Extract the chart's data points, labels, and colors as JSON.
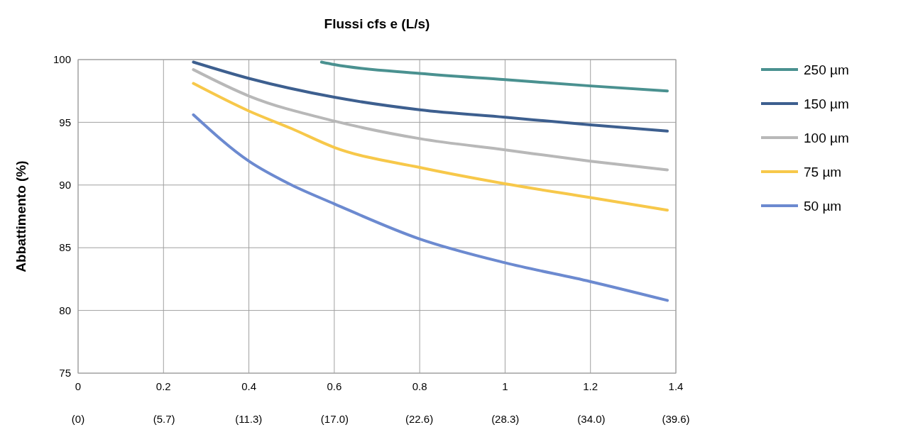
{
  "chart_data": {
    "type": "line",
    "title": "Flussi cfs e (L/s)",
    "ylabel": "Abbattimento (%)",
    "xlim": [
      0,
      1.4
    ],
    "xticks": [
      0,
      0.2,
      0.4,
      0.6,
      0.8,
      1,
      1.2,
      1.4
    ],
    "x2lim": [
      0,
      39.6
    ],
    "x2ticks": [
      {
        "value": 0,
        "label": "(0)"
      },
      {
        "value": 5.7,
        "label": "(5.7)"
      },
      {
        "value": 11.3,
        "label": "(11.3)"
      },
      {
        "value": 17.0,
        "label": "(17.0)"
      },
      {
        "value": 22.6,
        "label": "(22.6)"
      },
      {
        "value": 28.3,
        "label": "(28.3)"
      },
      {
        "value": 34.0,
        "label": "(34.0)"
      },
      {
        "value": 39.6,
        "label": "(39.6)"
      }
    ],
    "ylim": [
      75,
      100
    ],
    "yticks": [
      75,
      80,
      85,
      90,
      95,
      100
    ],
    "grid": true,
    "legend": "top right",
    "marker": "none",
    "line_style": "solid",
    "series": [
      {
        "name": "250 µm",
        "color": "#4a9190",
        "x": [
          0.57,
          0.6,
          0.8,
          1.0,
          1.2,
          1.38
        ],
        "values": [
          99.8,
          99.6,
          98.9,
          98.4,
          97.9,
          97.5
        ]
      },
      {
        "name": "150 µm",
        "color": "#3d5f8f",
        "x": [
          0.27,
          0.4,
          0.6,
          0.8,
          1.0,
          1.2,
          1.38
        ],
        "values": [
          99.8,
          98.5,
          97.0,
          96.0,
          95.4,
          94.8,
          94.3
        ]
      },
      {
        "name": "100 µm",
        "color": "#b8b8b8",
        "x": [
          0.27,
          0.4,
          0.6,
          0.8,
          1.0,
          1.2,
          1.38
        ],
        "values": [
          99.2,
          97.1,
          95.1,
          93.7,
          92.8,
          91.9,
          91.2
        ]
      },
      {
        "name": "75 µm",
        "color": "#f7c84a",
        "x": [
          0.27,
          0.4,
          0.5,
          0.6,
          0.8,
          1.0,
          1.2,
          1.38
        ],
        "values": [
          98.1,
          95.9,
          94.5,
          93.0,
          91.4,
          90.1,
          89.0,
          88.0
        ]
      },
      {
        "name": "50 µm",
        "color": "#6c8ad0",
        "x": [
          0.27,
          0.4,
          0.5,
          0.6,
          0.8,
          1.0,
          1.2,
          1.38
        ],
        "values": [
          95.6,
          91.9,
          90.0,
          88.5,
          85.7,
          83.8,
          82.3,
          80.8
        ]
      }
    ]
  }
}
